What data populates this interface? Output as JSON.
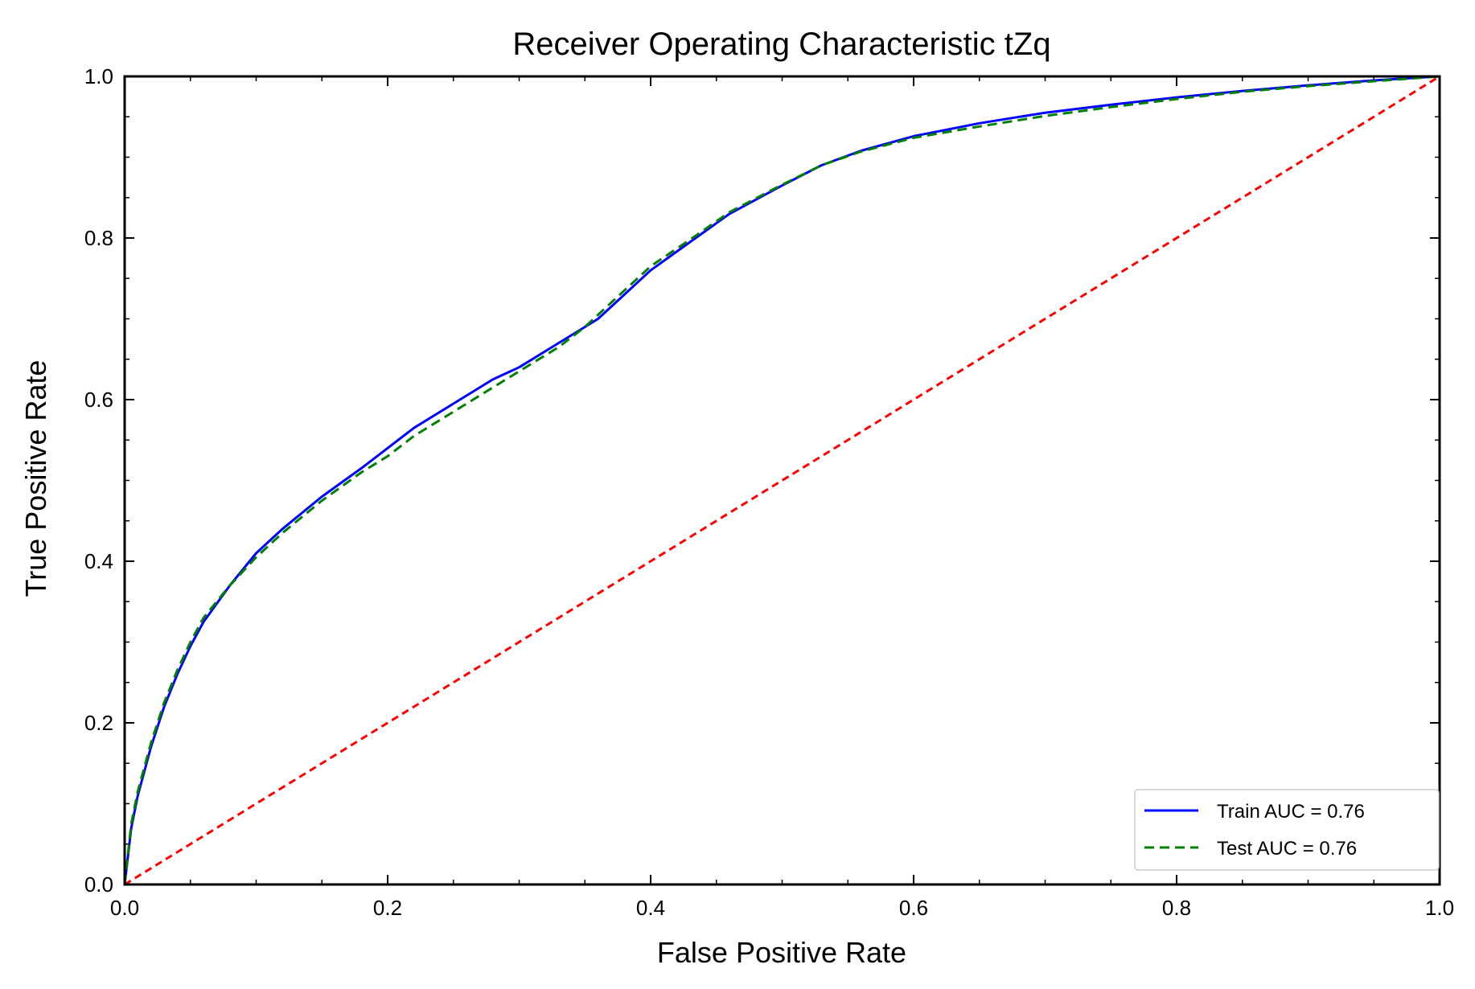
{
  "chart_data": {
    "type": "line",
    "title": "Receiver Operating Characteristic tZq",
    "xlabel": "False Positive Rate",
    "ylabel": "True Positive Rate",
    "xlim": [
      0.0,
      1.0
    ],
    "ylim": [
      0.0,
      1.0
    ],
    "xticks": [
      "0.0",
      "0.2",
      "0.4",
      "0.6",
      "0.8",
      "1.0"
    ],
    "yticks": [
      "0.0",
      "0.2",
      "0.4",
      "0.6",
      "0.8",
      "1.0"
    ],
    "grid": false,
    "legend_position": "lower-right",
    "series": [
      {
        "name": "Train AUC = 0.76",
        "color": "#0000ff",
        "style": "solid",
        "x": [
          0,
          0.005,
          0.01,
          0.02,
          0.03,
          0.04,
          0.05,
          0.06,
          0.08,
          0.1,
          0.12,
          0.15,
          0.18,
          0.2,
          0.22,
          0.25,
          0.28,
          0.3,
          0.33,
          0.35,
          0.36,
          0.38,
          0.4,
          0.43,
          0.46,
          0.5,
          0.53,
          0.56,
          0.6,
          0.65,
          0.7,
          0.75,
          0.8,
          0.85,
          0.9,
          0.95,
          1.0
        ],
        "y": [
          0,
          0.07,
          0.11,
          0.17,
          0.22,
          0.26,
          0.295,
          0.325,
          0.37,
          0.41,
          0.44,
          0.48,
          0.515,
          0.54,
          0.565,
          0.595,
          0.625,
          0.64,
          0.67,
          0.69,
          0.7,
          0.73,
          0.76,
          0.795,
          0.83,
          0.865,
          0.89,
          0.908,
          0.926,
          0.942,
          0.955,
          0.965,
          0.974,
          0.982,
          0.989,
          0.995,
          1.0
        ]
      },
      {
        "name": "Test AUC = 0.76",
        "color": "#008000",
        "style": "dashed",
        "x": [
          0,
          0.005,
          0.01,
          0.02,
          0.03,
          0.04,
          0.05,
          0.06,
          0.08,
          0.1,
          0.12,
          0.15,
          0.18,
          0.2,
          0.22,
          0.25,
          0.28,
          0.3,
          0.33,
          0.35,
          0.36,
          0.38,
          0.4,
          0.43,
          0.46,
          0.5,
          0.53,
          0.56,
          0.6,
          0.65,
          0.7,
          0.75,
          0.8,
          0.85,
          0.9,
          0.95,
          1.0
        ],
        "y": [
          0,
          0.075,
          0.115,
          0.175,
          0.225,
          0.265,
          0.3,
          0.33,
          0.37,
          0.405,
          0.435,
          0.475,
          0.51,
          0.53,
          0.555,
          0.585,
          0.615,
          0.635,
          0.665,
          0.69,
          0.705,
          0.735,
          0.765,
          0.798,
          0.832,
          0.866,
          0.89,
          0.907,
          0.924,
          0.938,
          0.951,
          0.962,
          0.972,
          0.981,
          0.988,
          0.994,
          1.0
        ]
      },
      {
        "name": "",
        "color": "#ff0000",
        "style": "dashed",
        "x": [
          0,
          1
        ],
        "y": [
          0,
          1
        ]
      }
    ]
  }
}
